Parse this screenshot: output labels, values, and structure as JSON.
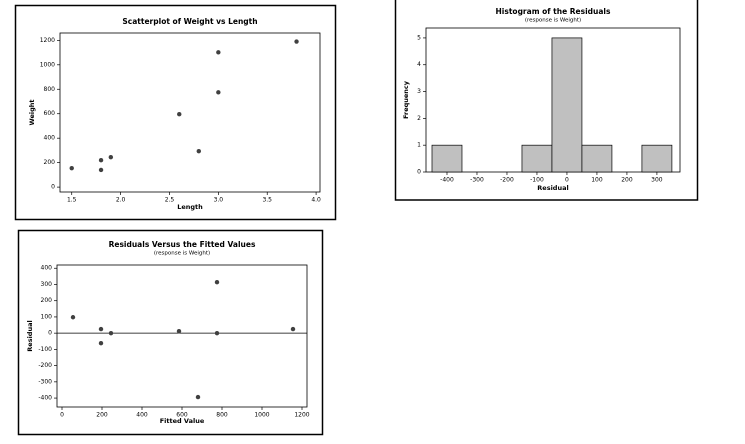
{
  "chart_data": [
    {
      "type": "scatter",
      "title": "Scatterplot of Weight vs Length",
      "x_label": "Length",
      "y_label": "Weight",
      "x": [
        1.5,
        1.8,
        1.8,
        1.9,
        2.6,
        2.8,
        3.0,
        3.0,
        3.8
      ],
      "values": [
        155,
        220,
        140,
        245,
        596,
        294,
        1102,
        775,
        1190
      ],
      "color": "#404040",
      "xlim": [
        1.38,
        4.04
      ],
      "xticks": [
        1.5,
        {
          "value": 2,
          "label": "2.0"
        },
        2.5,
        {
          "value": 3,
          "label": "3.0"
        },
        3.5,
        {
          "value": 4,
          "label": "4.0"
        }
      ],
      "ylim": [
        -40,
        1260
      ],
      "yticks": [
        0,
        200,
        400,
        600,
        800,
        1000,
        1200
      ],
      "grid": false
    },
    {
      "type": "histogram",
      "title": "Histogram of the Residuals",
      "subtitle": "(response is Weight)",
      "x_label": "Residual",
      "y_label": "Frequency",
      "bins": [
        -450,
        -350,
        -250,
        -150,
        -50,
        50,
        150,
        250,
        350
      ],
      "values": [
        1,
        0,
        0,
        1,
        5,
        1,
        0,
        1
      ],
      "color": "#c0c0c0",
      "xlim": [
        -470,
        377
      ],
      "xticks": [
        -400,
        -300,
        -200,
        -100,
        0,
        100,
        200,
        300
      ],
      "ylim": [
        0,
        5.37
      ],
      "yticks": [
        0,
        1,
        2,
        3,
        4,
        5
      ],
      "grid": false
    },
    {
      "type": "scatter",
      "title": "Residuals Versus the Fitted Values",
      "subtitle": "(response is Weight)",
      "x_label": "Fitted Value",
      "y_label": "Residual",
      "x": [
        55,
        195,
        195,
        245,
        585,
        680,
        775,
        775,
        1155
      ],
      "values": [
        98,
        25,
        -62,
        0,
        12,
        -394,
        314,
        0,
        25
      ],
      "color": "#404040",
      "hline": 0,
      "xlim": [
        -25,
        1225
      ],
      "xticks": [
        0,
        200,
        400,
        600,
        800,
        1000,
        1200
      ],
      "ylim": [
        -455,
        420
      ],
      "yticks": [
        -400,
        -300,
        -200,
        -100,
        0,
        100,
        200,
        300,
        400
      ],
      "grid": false
    }
  ]
}
